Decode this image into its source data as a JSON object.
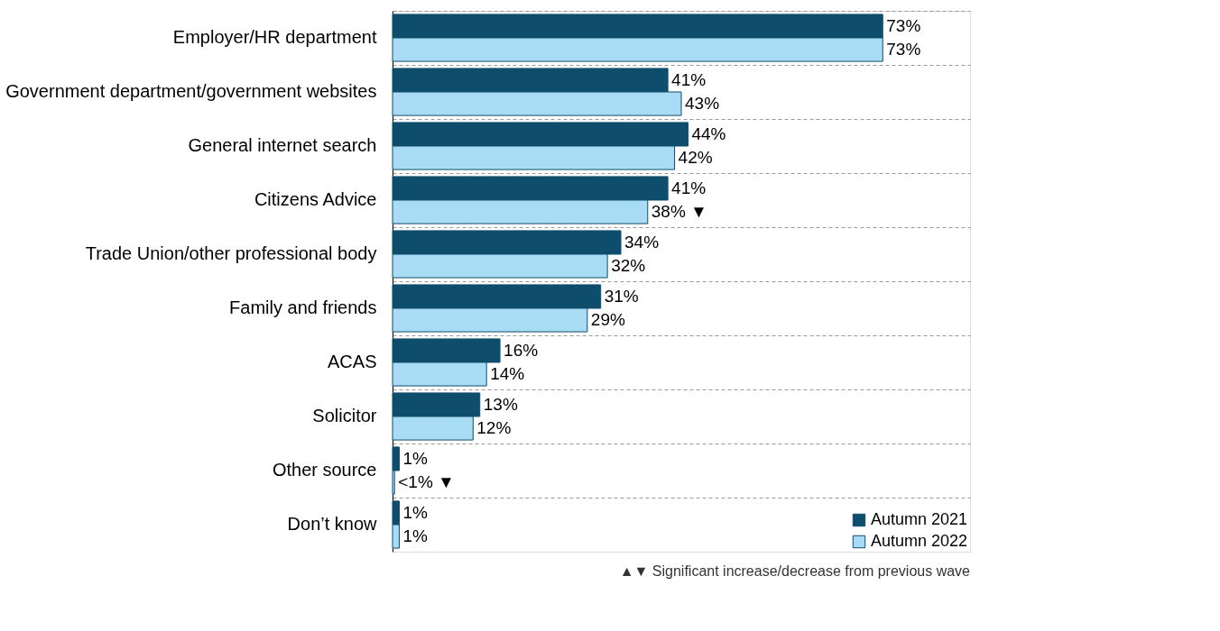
{
  "chart_data": {
    "type": "bar",
    "orientation": "horizontal",
    "categories": [
      "Employer/HR department",
      "Government department/government websites",
      "General internet search",
      "Citizens Advice",
      "Trade Union/other professional body",
      "Family and friends",
      "ACAS",
      "Solicitor",
      "Other source",
      "Don’t know"
    ],
    "series": [
      {
        "name": "Autumn 2021",
        "color": "#0e4d6c",
        "values": [
          73,
          41,
          44,
          41,
          34,
          31,
          16,
          13,
          1,
          1
        ],
        "value_labels": [
          "73%",
          "41%",
          "44%",
          "41%",
          "34%",
          "31%",
          "16%",
          "13%",
          "1%",
          "1%"
        ]
      },
      {
        "name": "Autumn 2022",
        "color": "#a8dcf4",
        "values": [
          73,
          43,
          42,
          38,
          32,
          29,
          14,
          12,
          0.3,
          1
        ],
        "value_labels": [
          "73%",
          "43%",
          "42%",
          "38% ▼",
          "32%",
          "29%",
          "14%",
          "12%",
          "<1% ▼",
          "1%"
        ]
      }
    ],
    "xlim": [
      0,
      86
    ],
    "tick_labels": "y",
    "grid": "y",
    "legend": "bottom right",
    "annotations": [
      "▲▼ Significant increase/decrease from previous wave"
    ]
  }
}
